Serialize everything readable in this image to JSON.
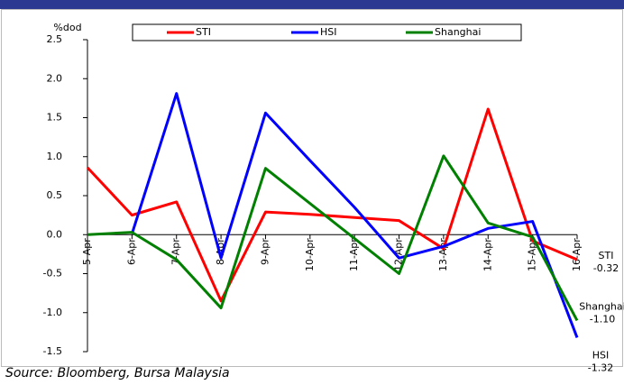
{
  "chart_data": {
    "type": "line",
    "y_label": "%dod",
    "source": "Source: Bloomberg, Bursa Malaysia",
    "categories": [
      "5-Apr",
      "6-Apr",
      "7-Apr",
      "8-Apr",
      "9-Apr",
      "10-Apr",
      "11-Apr",
      "12-Apr",
      "13-Apr",
      "14-Apr",
      "15-Apr",
      "16-Apr"
    ],
    "series": [
      {
        "name": "STI",
        "color": "#ff0000",
        "values": [
          0.86,
          0.25,
          0.42,
          -0.85,
          0.29,
          0.26,
          0.22,
          0.18,
          -0.18,
          1.61,
          -0.08,
          -0.32
        ],
        "value_labels": [
          null,
          null,
          null,
          null,
          null,
          null,
          null,
          null,
          null,
          null,
          null,
          "-0.32"
        ]
      },
      {
        "name": "HSI",
        "color": "#0000ff",
        "values": [
          null,
          0.01,
          1.81,
          -0.3,
          1.56,
          0.95,
          0.35,
          -0.3,
          -0.15,
          0.08,
          0.17,
          -1.32
        ],
        "value_labels": [
          null,
          null,
          null,
          null,
          null,
          null,
          null,
          null,
          null,
          null,
          null,
          "-1.32"
        ]
      },
      {
        "name": "Shanghai",
        "color": "#008000",
        "values": [
          0.0,
          0.03,
          -0.32,
          -0.94,
          0.85,
          0.4,
          -0.05,
          -0.5,
          1.01,
          0.15,
          -0.03,
          -1.1
        ],
        "value_labels": [
          null,
          null,
          null,
          null,
          null,
          null,
          null,
          null,
          null,
          null,
          null,
          "-1.10"
        ]
      }
    ],
    "ylim": [
      -1.5,
      2.5
    ],
    "yticks": [
      {
        "value": -1.5,
        "label": "-1.5"
      },
      {
        "value": -1,
        "label": "-1.0"
      },
      {
        "value": -0.5,
        "label": "-0.5"
      },
      {
        "value": 0,
        "label": "0.0"
      },
      {
        "value": 0.5,
        "label": "0.5"
      },
      {
        "value": 1,
        "label": "1.0"
      },
      {
        "value": 1.5,
        "label": "1.5"
      },
      {
        "value": 2,
        "label": "2.0"
      },
      {
        "value": 2.5,
        "label": "2.5"
      }
    ],
    "grid": false,
    "legend": "top"
  }
}
